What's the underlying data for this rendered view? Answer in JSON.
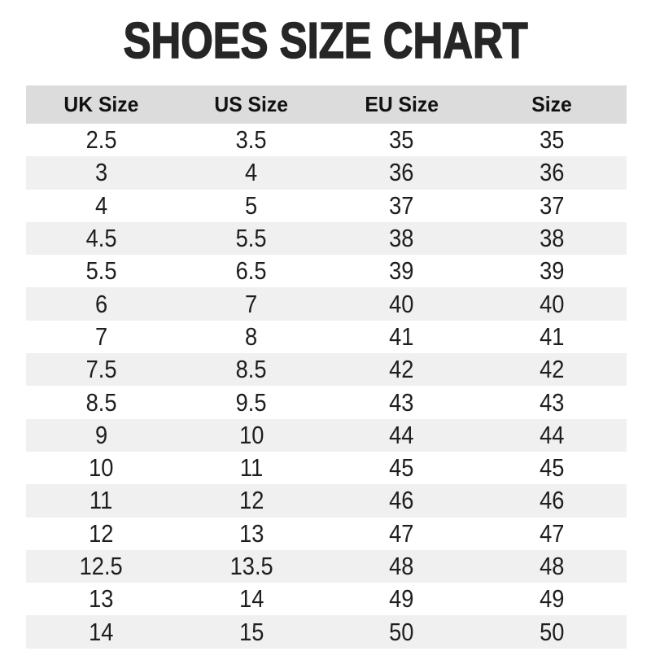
{
  "title": "SHOES SIZE CHART",
  "chart_data": {
    "type": "table",
    "title": "SHOES SIZE CHART",
    "columns": [
      "UK Size",
      "US Size",
      "EU Size",
      "Size"
    ],
    "rows": [
      [
        "2.5",
        "3.5",
        "35",
        "35"
      ],
      [
        "3",
        "4",
        "36",
        "36"
      ],
      [
        "4",
        "5",
        "37",
        "37"
      ],
      [
        "4.5",
        "5.5",
        "38",
        "38"
      ],
      [
        "5.5",
        "6.5",
        "39",
        "39"
      ],
      [
        "6",
        "7",
        "40",
        "40"
      ],
      [
        "7",
        "8",
        "41",
        "41"
      ],
      [
        "7.5",
        "8.5",
        "42",
        "42"
      ],
      [
        "8.5",
        "9.5",
        "43",
        "43"
      ],
      [
        "9",
        "10",
        "44",
        "44"
      ],
      [
        "10",
        "11",
        "45",
        "45"
      ],
      [
        "11",
        "12",
        "46",
        "46"
      ],
      [
        "12",
        "13",
        "47",
        "47"
      ],
      [
        "12.5",
        "13.5",
        "48",
        "48"
      ],
      [
        "13",
        "14",
        "49",
        "49"
      ],
      [
        "14",
        "15",
        "50",
        "50"
      ]
    ],
    "layout": {
      "stripe_pattern": "alternating, first data row white",
      "cell_alignment": "center",
      "grid": false
    }
  },
  "colors": {
    "title_text": "#262626",
    "header_bg": "#dcdcdc",
    "stripe_row_bg": "#f0f0f0",
    "plain_row_bg": "#ffffff",
    "cell_text": "#1e1e1e"
  }
}
